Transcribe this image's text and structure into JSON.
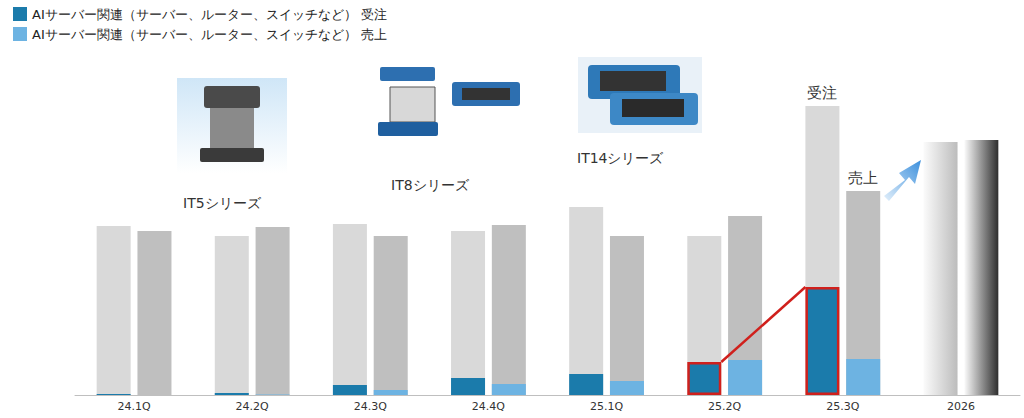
{
  "chart_data": {
    "type": "bar",
    "categories": [
      "24.1Q",
      "24.2Q",
      "24.3Q",
      "24.4Q",
      "25.1Q",
      "25.2Q",
      "25.3Q",
      "2026"
    ],
    "series": [
      {
        "color": "#d9d9d9",
        "values": [
          169,
          159,
          171,
          164,
          188,
          159,
          289,
          253
        ],
        "annotation": {
          "category": "25.3Q",
          "text": "受注"
        }
      },
      {
        "color": "#bfbfbf",
        "values": [
          164,
          168,
          159,
          170,
          159,
          179,
          204,
          255
        ],
        "annotation": {
          "category": "25.3Q",
          "text": "売上"
        }
      },
      {
        "name": "AIサーバー関連（サーバー、ルーター、スイッチなど） 受注",
        "color": "#1b7bab",
        "values": [
          1,
          2,
          10,
          17,
          21,
          33,
          108,
          null
        ]
      },
      {
        "name": "AIサーバー関連（サーバー、ルーター、スイッチなど） 売上",
        "color": "#6db3e2",
        "values": [
          0,
          0.5,
          5,
          11,
          14,
          35,
          36,
          null
        ]
      }
    ],
    "products": [
      "IT5シリーズ",
      "IT8シリーズ",
      "IT14シリーズ"
    ],
    "ylim": [
      0,
      300
    ],
    "stacked": false,
    "grid": false,
    "tick_labels": "x",
    "legend": "top-left"
  }
}
